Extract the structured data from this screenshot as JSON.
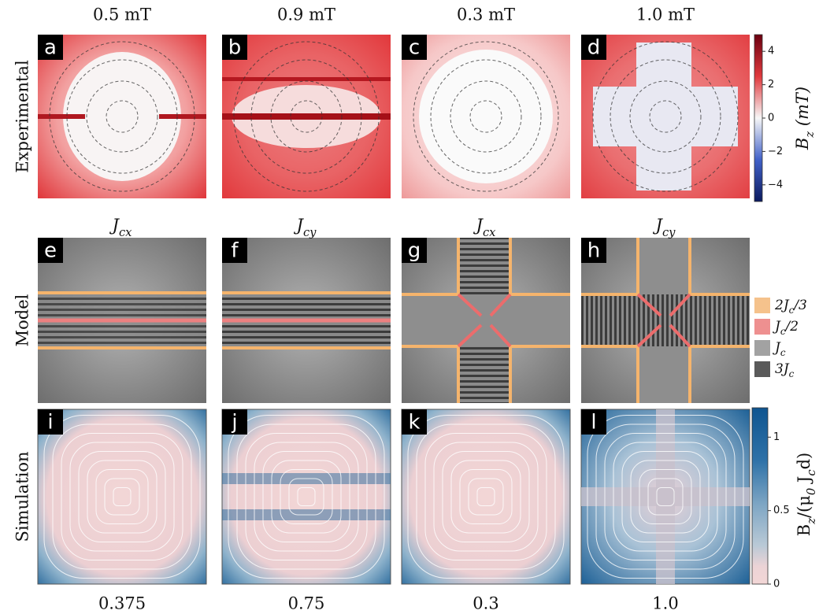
{
  "column_headers": [
    "0.5 mT",
    "0.9 mT",
    "0.3 mT",
    "1.0 mT"
  ],
  "row_labels": [
    "Experimental",
    "Model",
    "Simulation"
  ],
  "panel_letters": [
    [
      "a",
      "b",
      "c",
      "d"
    ],
    [
      "e",
      "f",
      "g",
      "h"
    ],
    [
      "i",
      "j",
      "k",
      "l"
    ]
  ],
  "model_headers": [
    [
      "J",
      "cx"
    ],
    [
      "J",
      "cy"
    ],
    [
      "J",
      "cx"
    ],
    [
      "J",
      "cy"
    ]
  ],
  "experimental_colorbar": {
    "label": [
      "B",
      "z",
      " (mT)"
    ],
    "lim": [
      -5,
      5
    ],
    "ticks": [
      4,
      2,
      0,
      {
        "value": -2,
        "label": "−2"
      },
      {
        "value": -4,
        "label": "−4"
      }
    ]
  },
  "model_legend": [
    {
      "label": [
        "2J",
        "c",
        "/3"
      ],
      "color": "#f5c28c"
    },
    {
      "label": [
        "J",
        "c",
        "/2"
      ],
      "color": "#ee9090"
    },
    {
      "label": [
        "J",
        "c"
      ],
      "color": "#a2a2a2"
    },
    {
      "label": [
        "3J",
        "c"
      ],
      "color": "#5a5a5a"
    }
  ],
  "simulation_colorbar": {
    "label": [
      "B",
      "z",
      "/(μ",
      "0",
      " J",
      "c",
      "d)"
    ],
    "lim": [
      0,
      1.2
    ],
    "ticks": [
      0,
      0.5,
      1
    ]
  },
  "bottom_labels": [
    "0.375",
    "0.75",
    "0.3",
    "1.0"
  ]
}
